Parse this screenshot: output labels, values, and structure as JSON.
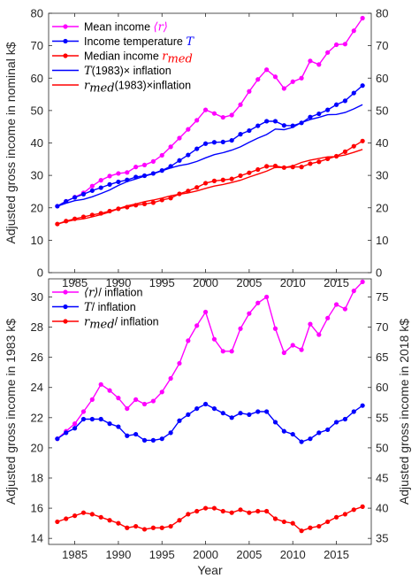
{
  "chart_data": [
    {
      "type": "line",
      "xlim": [
        1982,
        2019
      ],
      "ylim": [
        0,
        80
      ],
      "ylabel": "Adjusted gross income in nominal k$",
      "x_ticks": [
        "1985",
        "1990",
        "1995",
        "2000",
        "2005",
        "2010",
        "2015"
      ],
      "y_ticks": [
        "0",
        "10",
        "20",
        "30",
        "40",
        "50",
        "60",
        "70",
        "80"
      ],
      "right_y_ticks": [
        "0",
        "10",
        "20",
        "30",
        "40",
        "50",
        "60",
        "70",
        "80"
      ],
      "legend_position": "top-left",
      "x": [
        1983,
        1984,
        1985,
        1986,
        1987,
        1988,
        1989,
        1990,
        1991,
        1992,
        1993,
        1994,
        1995,
        1996,
        1997,
        1998,
        1999,
        2000,
        2001,
        2002,
        2003,
        2004,
        2005,
        2006,
        2007,
        2008,
        2009,
        2010,
        2011,
        2012,
        2013,
        2014,
        2015,
        2016,
        2017,
        2018
      ],
      "series": [
        {
          "name": "Mean income ",
          "math": "⟨r⟩",
          "color": "#ff00ff",
          "markers": true,
          "values": [
            20.5,
            22.0,
            23.3,
            24.6,
            26.7,
            28.5,
            29.8,
            30.6,
            30.9,
            32.6,
            33.2,
            34.3,
            36.2,
            38.8,
            41.5,
            44.2,
            47.0,
            50.2,
            49.1,
            47.9,
            48.6,
            51.8,
            55.9,
            59.6,
            62.6,
            60.4,
            56.8,
            58.9,
            60.0,
            65.3,
            64.2,
            67.9,
            70.3,
            70.5,
            74.6,
            78.5
          ]
        },
        {
          "name": "Income temperature ",
          "math": "T",
          "color": "#0000ff",
          "markers": true,
          "values": [
            20.5,
            22.0,
            23.2,
            24.2,
            25.3,
            26.2,
            27.2,
            28.0,
            28.6,
            29.5,
            29.9,
            30.6,
            31.5,
            32.8,
            34.6,
            36.3,
            38.2,
            39.8,
            40.2,
            40.3,
            40.8,
            42.7,
            43.8,
            45.3,
            46.7,
            46.7,
            45.4,
            45.3,
            46.2,
            48.0,
            49.0,
            50.2,
            51.8,
            53.0,
            55.4,
            57.7
          ]
        },
        {
          "name": "Median income ",
          "math": "r",
          "math_sub": "med",
          "color": "#ff0000",
          "markers": true,
          "values": [
            15.0,
            15.9,
            16.6,
            17.2,
            17.8,
            18.3,
            19.0,
            19.7,
            20.2,
            20.8,
            21.2,
            21.6,
            22.4,
            23.0,
            24.3,
            25.2,
            26.3,
            27.6,
            28.3,
            28.6,
            28.9,
            29.9,
            30.8,
            31.8,
            32.8,
            32.9,
            32.4,
            32.6,
            32.6,
            33.6,
            34.2,
            35.1,
            35.9,
            37.3,
            39.0,
            40.6
          ]
        },
        {
          "name": "",
          "math": "T",
          "math_tail": "(1983)× inflation",
          "color": "#0000ff",
          "markers": false,
          "values": [
            20.5,
            21.4,
            22.2,
            22.6,
            23.4,
            24.4,
            25.5,
            26.9,
            28.1,
            28.9,
            29.8,
            30.5,
            31.4,
            32.3,
            33.0,
            33.5,
            34.3,
            35.4,
            36.4,
            37.0,
            37.8,
            38.8,
            40.2,
            41.5,
            42.6,
            44.3,
            44.1,
            44.8,
            46.3,
            47.2,
            47.9,
            48.7,
            48.8,
            49.4,
            50.5,
            51.8
          ]
        },
        {
          "name": "",
          "math": "r",
          "math_sub": "med",
          "math_tail": "(1983)×inflation",
          "color": "#ff0000",
          "markers": false,
          "values": [
            15.0,
            15.7,
            16.3,
            16.6,
            17.2,
            17.9,
            18.7,
            19.7,
            20.6,
            21.2,
            21.9,
            22.4,
            23.0,
            23.7,
            24.2,
            24.6,
            25.2,
            26.0,
            26.7,
            27.2,
            27.8,
            28.5,
            29.5,
            30.4,
            31.3,
            32.5,
            32.4,
            32.9,
            34.0,
            34.7,
            35.2,
            35.7,
            35.8,
            36.3,
            37.1,
            38.0
          ]
        }
      ]
    },
    {
      "type": "line",
      "xlim": [
        1982,
        2019
      ],
      "ylim": [
        13.6,
        31.2
      ],
      "xlabel": "Year",
      "ylabel": "Adjusted gross income in 1983 k$",
      "right_ylabel": "Adjusted gross income in 2018 k$",
      "x_ticks": [
        "1985",
        "1990",
        "1995",
        "2000",
        "2005",
        "2010",
        "2015"
      ],
      "y_ticks": [
        "14",
        "16",
        "18",
        "20",
        "22",
        "24",
        "26",
        "28",
        "30"
      ],
      "right_y_ticks": [
        "35",
        "40",
        "45",
        "50",
        "55",
        "60",
        "65",
        "70",
        "75"
      ],
      "legend_position": "top-left",
      "x": [
        1983,
        1984,
        1985,
        1986,
        1987,
        1988,
        1989,
        1990,
        1991,
        1992,
        1993,
        1994,
        1995,
        1996,
        1997,
        1998,
        1999,
        2000,
        2001,
        2002,
        2003,
        2004,
        2005,
        2006,
        2007,
        2008,
        2009,
        2010,
        2011,
        2012,
        2013,
        2014,
        2015,
        2016,
        2017,
        2018
      ],
      "series": [
        {
          "name": "",
          "math": "⟨r⟩",
          "math_tail": "/ inflation",
          "color": "#ff00ff",
          "markers": true,
          "values": [
            20.6,
            21.1,
            21.6,
            22.4,
            23.2,
            24.2,
            23.8,
            23.3,
            22.6,
            23.2,
            22.9,
            23.1,
            23.7,
            24.6,
            25.6,
            27.1,
            28.1,
            29.0,
            27.2,
            26.4,
            26.4,
            27.9,
            28.9,
            29.6,
            30.0,
            27.9,
            26.3,
            26.8,
            26.5,
            28.2,
            27.5,
            28.6,
            29.5,
            29.2,
            30.4,
            31.0
          ]
        },
        {
          "name": "",
          "math": "T",
          "math_tail": "/ inflation",
          "color": "#0000ff",
          "markers": true,
          "values": [
            20.6,
            21.0,
            21.3,
            21.9,
            21.9,
            21.9,
            21.6,
            21.4,
            20.8,
            20.9,
            20.5,
            20.5,
            20.6,
            21.0,
            21.8,
            22.2,
            22.6,
            22.9,
            22.6,
            22.3,
            22.0,
            22.3,
            22.2,
            22.4,
            22.4,
            21.7,
            21.1,
            20.9,
            20.4,
            20.6,
            21.0,
            21.2,
            21.7,
            21.9,
            22.4,
            22.8
          ]
        },
        {
          "name": "",
          "math": "r",
          "math_sub": "med",
          "math_tail": "/ inflation",
          "color": "#ff0000",
          "markers": true,
          "values": [
            15.1,
            15.3,
            15.5,
            15.7,
            15.6,
            15.4,
            15.2,
            15.0,
            14.7,
            14.8,
            14.6,
            14.7,
            14.7,
            14.8,
            15.2,
            15.6,
            15.8,
            16.0,
            16.0,
            15.8,
            15.7,
            15.9,
            15.7,
            15.8,
            15.8,
            15.3,
            15.1,
            15.0,
            14.5,
            14.7,
            14.8,
            15.1,
            15.4,
            15.6,
            15.9,
            16.1
          ]
        }
      ]
    }
  ]
}
